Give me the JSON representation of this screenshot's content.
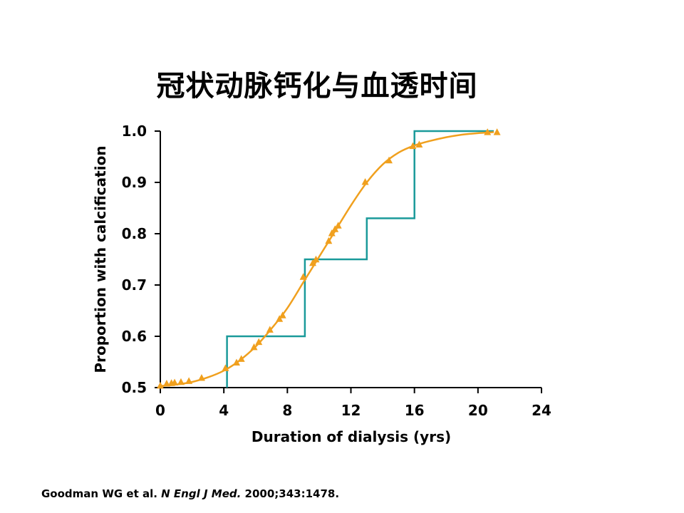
{
  "slide": {
    "title": "冠状动脉钙化与血透时间"
  },
  "citation": {
    "authors": "Goodman WG et al.",
    "journal": "N Engl J Med.",
    "ref": "2000;343:1478."
  },
  "colors": {
    "step_series": "#1a9a9a",
    "curve_series": "#f0a01e",
    "axis": "#000000"
  },
  "chart_data": {
    "type": "line",
    "title": "",
    "xlabel": "Duration of dialysis (yrs)",
    "ylabel": "Proportion with calcification",
    "xlim": [
      0,
      24
    ],
    "ylim": [
      0.5,
      1.0
    ],
    "x_ticks": [
      0,
      4,
      8,
      12,
      16,
      20,
      24
    ],
    "y_ticks": [
      0.5,
      0.6,
      0.7,
      0.8,
      0.9,
      1.0
    ],
    "x_tick_labels": [
      "0",
      "4",
      "8",
      "12",
      "16",
      "20",
      "24"
    ],
    "y_tick_labels": [
      "0.5",
      "0.6",
      "0.7",
      "0.8",
      "0.9",
      "1.0"
    ],
    "grid": false,
    "series": [
      {
        "kind": "step",
        "color": "#1a9a9a",
        "points": [
          [
            4.2,
            0.5
          ],
          [
            4.2,
            0.6
          ],
          [
            9.1,
            0.6
          ],
          [
            9.1,
            0.75
          ],
          [
            13.0,
            0.75
          ],
          [
            13.0,
            0.83
          ],
          [
            16.0,
            0.83
          ],
          [
            16.0,
            1.0
          ],
          [
            21.0,
            1.0
          ]
        ]
      },
      {
        "kind": "curve",
        "color": "#f0a01e",
        "marker": "triangle",
        "curve": [
          [
            0,
            0.503
          ],
          [
            1,
            0.506
          ],
          [
            2,
            0.511
          ],
          [
            3,
            0.52
          ],
          [
            4,
            0.533
          ],
          [
            5,
            0.553
          ],
          [
            6,
            0.58
          ],
          [
            7,
            0.615
          ],
          [
            8,
            0.655
          ],
          [
            9,
            0.705
          ],
          [
            10,
            0.755
          ],
          [
            11,
            0.805
          ],
          [
            12,
            0.855
          ],
          [
            13,
            0.9
          ],
          [
            14,
            0.935
          ],
          [
            15,
            0.958
          ],
          [
            16,
            0.972
          ],
          [
            17,
            0.981
          ],
          [
            18,
            0.988
          ],
          [
            19,
            0.993
          ],
          [
            20,
            0.996
          ],
          [
            21,
            0.998
          ]
        ],
        "markers": [
          [
            0.0,
            0.503
          ],
          [
            0.4,
            0.507
          ],
          [
            0.7,
            0.508
          ],
          [
            0.9,
            0.509
          ],
          [
            1.3,
            0.51
          ],
          [
            1.8,
            0.512
          ],
          [
            2.6,
            0.518
          ],
          [
            4.1,
            0.537
          ],
          [
            4.8,
            0.548
          ],
          [
            5.1,
            0.555
          ],
          [
            5.9,
            0.578
          ],
          [
            6.2,
            0.588
          ],
          [
            6.9,
            0.612
          ],
          [
            7.5,
            0.633
          ],
          [
            7.7,
            0.64
          ],
          [
            9.0,
            0.715
          ],
          [
            9.6,
            0.742
          ],
          [
            9.8,
            0.749
          ],
          [
            10.6,
            0.785
          ],
          [
            10.8,
            0.8
          ],
          [
            11.0,
            0.808
          ],
          [
            11.2,
            0.815
          ],
          [
            12.9,
            0.9
          ],
          [
            14.4,
            0.942
          ],
          [
            15.9,
            0.97
          ],
          [
            16.3,
            0.973
          ],
          [
            20.6,
            0.997
          ],
          [
            21.2,
            0.997
          ]
        ]
      }
    ]
  }
}
